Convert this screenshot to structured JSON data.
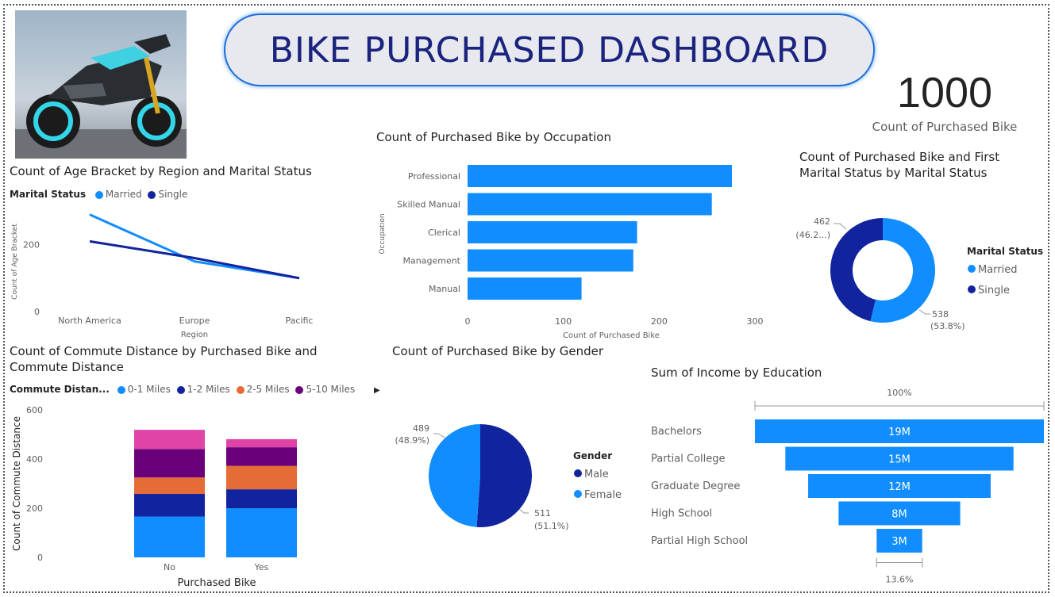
{
  "dashboard": {
    "title": "BIKE PURCHASED DASHBOARD",
    "kpi_value": "1000",
    "kpi_label": "Count of Purchased Bike"
  },
  "colors": {
    "married": "#118dff",
    "single": "#12239e",
    "d01": "#118dff",
    "d12": "#12239e",
    "d25": "#e66c37",
    "d510": "#6b007b",
    "dmore": "#e044a7"
  },
  "chart_data": [
    {
      "id": "age-region",
      "type": "line",
      "title": "Count of Age Bracket by Region and Marital Status",
      "legend_title": "Marital Status",
      "xlabel": "Region",
      "ylabel": "Count of Age Bracket",
      "categories": [
        "North America",
        "Europe",
        "Pacific"
      ],
      "yticks": [
        "0",
        "200"
      ],
      "ylim": [
        0,
        320
      ],
      "series": [
        {
          "name": "Married",
          "values": [
            290,
            150,
            100
          ]
        },
        {
          "name": "Single",
          "values": [
            210,
            160,
            100
          ]
        }
      ]
    },
    {
      "id": "occupation",
      "type": "bar",
      "title": "Count of Purchased Bike by Occupation",
      "xlabel": "Count of Purchased Bike",
      "ylabel": "Occupation",
      "categories": [
        "Professional",
        "Skilled Manual",
        "Clerical",
        "Management",
        "Manual"
      ],
      "values": [
        276,
        255,
        177,
        173,
        119
      ],
      "xticks": [
        "0",
        "100",
        "200",
        "300"
      ],
      "xlim": [
        0,
        300
      ]
    },
    {
      "id": "marital-donut",
      "type": "pie",
      "title": "Count of Purchased Bike and First Marital Status by Marital Status",
      "legend_title": "Marital Status",
      "categories": [
        "Married",
        "Single"
      ],
      "values": [
        538,
        462
      ],
      "labels": [
        {
          "value": "538",
          "pct": "(53.8%)"
        },
        {
          "value": "462",
          "pct": "(46.2...)"
        }
      ]
    },
    {
      "id": "commute",
      "type": "bar",
      "title": "Count of Commute Distance by Purchased Bike and Commute Distance",
      "legend_title": "Commute Distan...",
      "legend_visible": [
        "0-1 Miles",
        "1-2 Miles",
        "2-5 Miles",
        "5-10 Miles"
      ],
      "xlabel": "Purchased Bike",
      "ylabel": "Count of Commute Distance",
      "categories": [
        "No",
        "Yes"
      ],
      "yticks": [
        "0",
        "200",
        "400",
        "600"
      ],
      "ylim": [
        0,
        600
      ],
      "series": [
        {
          "name": "0-1 Miles",
          "values": [
            166,
            200
          ]
        },
        {
          "name": "1-2 Miles",
          "values": [
            92,
            77
          ]
        },
        {
          "name": "2-5 Miles",
          "values": [
            67,
            95
          ]
        },
        {
          "name": "5-10 Miles",
          "values": [
            116,
            76
          ]
        },
        {
          "values": [
            78,
            33
          ]
        }
      ]
    },
    {
      "id": "gender",
      "type": "pie",
      "title": "Count of Purchased Bike by Gender",
      "legend_title": "Gender",
      "categories": [
        "Male",
        "Female"
      ],
      "values": [
        511,
        489
      ],
      "labels": [
        {
          "value": "511",
          "pct": "(51.1%)"
        },
        {
          "value": "489",
          "pct": "(48.9%)"
        }
      ]
    },
    {
      "id": "income",
      "type": "bar",
      "title": "Sum of Income by Education",
      "categories": [
        "Bachelors",
        "Partial College",
        "Graduate Degree",
        "High School",
        "Partial High School"
      ],
      "values": [
        19,
        15,
        12,
        8,
        3
      ],
      "value_labels": [
        "19M",
        "15M",
        "12M",
        "8M",
        "3M"
      ],
      "top_label": "100%",
      "bottom_label": "13.6%"
    }
  ]
}
